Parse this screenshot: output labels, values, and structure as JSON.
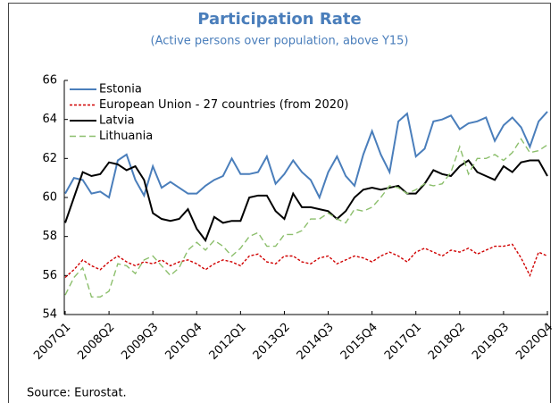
{
  "chart_data": {
    "type": "line",
    "title": "Participation Rate",
    "subtitle": "(Active persons over population, above Y15)",
    "source": "Source: Eurostat.",
    "categories": [
      "2007Q1",
      null,
      null,
      null,
      null,
      "2008Q2",
      null,
      null,
      null,
      null,
      "2009Q3",
      null,
      null,
      null,
      null,
      "2010Q4",
      null,
      null,
      null,
      null,
      "2012Q1",
      null,
      null,
      null,
      null,
      "2013Q2",
      null,
      null,
      null,
      null,
      "2014Q3",
      null,
      null,
      null,
      null,
      "2015Q4",
      null,
      null,
      null,
      null,
      "2017Q1",
      null,
      null,
      null,
      null,
      "2018Q2",
      null,
      null,
      null,
      null,
      "2019Q3",
      null,
      null,
      null,
      null,
      "2020Q4"
    ],
    "series": [
      {
        "name": "Estonia",
        "color": "#4a7ebb",
        "dashed": false,
        "values": [
          60.2,
          61.0,
          60.9,
          60.2,
          60.3,
          60.0,
          61.9,
          62.2,
          60.9,
          60.1,
          61.6,
          60.5,
          60.8,
          60.5,
          60.2,
          60.2,
          60.6,
          60.9,
          61.1,
          62.0,
          61.2,
          61.2,
          61.3,
          62.1,
          60.7,
          61.2,
          61.9,
          61.3,
          60.9,
          60.0,
          61.3,
          62.1,
          61.1,
          60.6,
          62.2,
          63.4,
          62.2,
          61.3,
          63.9,
          64.3,
          62.1,
          62.5,
          63.9,
          64.0,
          64.2,
          63.5,
          63.8,
          63.9,
          64.1,
          62.9,
          63.7,
          64.1,
          63.6,
          62.6,
          63.9,
          64.4
        ]
      },
      {
        "name": "European Union - 27 countries (from 2020)",
        "color": "#d00000",
        "dashed": true,
        "values": [
          55.9,
          56.3,
          56.8,
          56.5,
          56.3,
          56.7,
          57.0,
          56.7,
          56.5,
          56.7,
          56.6,
          56.8,
          56.5,
          56.7,
          56.8,
          56.6,
          56.3,
          56.6,
          56.8,
          56.7,
          56.5,
          57.0,
          57.1,
          56.7,
          56.6,
          57.0,
          57.0,
          56.7,
          56.6,
          56.9,
          57.0,
          56.6,
          56.8,
          57.0,
          56.9,
          56.7,
          57.0,
          57.2,
          57.0,
          56.7,
          57.2,
          57.4,
          57.2,
          57.0,
          57.3,
          57.2,
          57.4,
          57.1,
          57.3,
          57.5,
          57.5,
          57.6,
          56.9,
          56.0,
          57.2,
          57.0
        ]
      },
      {
        "name": "Latvia",
        "color": "#000000",
        "dashed": false,
        "values": [
          58.7,
          60.0,
          61.3,
          61.1,
          61.2,
          61.8,
          61.7,
          61.4,
          61.6,
          60.9,
          59.2,
          58.9,
          58.8,
          58.9,
          59.4,
          58.4,
          57.8,
          59.0,
          58.7,
          58.8,
          58.8,
          60.0,
          60.1,
          60.1,
          59.3,
          58.9,
          60.2,
          59.5,
          59.5,
          59.4,
          59.3,
          58.9,
          59.3,
          60.0,
          60.4,
          60.5,
          60.4,
          60.5,
          60.6,
          60.2,
          60.2,
          60.7,
          61.4,
          61.2,
          61.1,
          61.6,
          61.9,
          61.3,
          61.1,
          60.9,
          61.6,
          61.3,
          61.8,
          61.9,
          61.9,
          61.1
        ]
      },
      {
        "name": "Lithuania",
        "color": "#8cbf6c",
        "dashed": true,
        "values": [
          55.0,
          55.9,
          56.4,
          54.9,
          54.9,
          55.2,
          56.6,
          56.5,
          56.1,
          56.8,
          57.0,
          56.5,
          56.0,
          56.4,
          57.3,
          57.7,
          57.3,
          57.8,
          57.5,
          57.0,
          57.4,
          58.0,
          58.2,
          57.5,
          57.5,
          58.1,
          58.1,
          58.3,
          58.9,
          58.9,
          59.2,
          58.9,
          58.7,
          59.4,
          59.3,
          59.5,
          60.0,
          60.6,
          60.5,
          60.2,
          60.4,
          60.7,
          60.6,
          60.7,
          61.3,
          62.6,
          61.2,
          62.0,
          62.0,
          62.2,
          61.9,
          62.3,
          63.0,
          62.3,
          62.4,
          62.7
        ]
      }
    ],
    "ylim": [
      54,
      66
    ],
    "yticks": [
      54,
      56,
      58,
      60,
      62,
      64,
      66
    ],
    "legend": "top-left"
  }
}
